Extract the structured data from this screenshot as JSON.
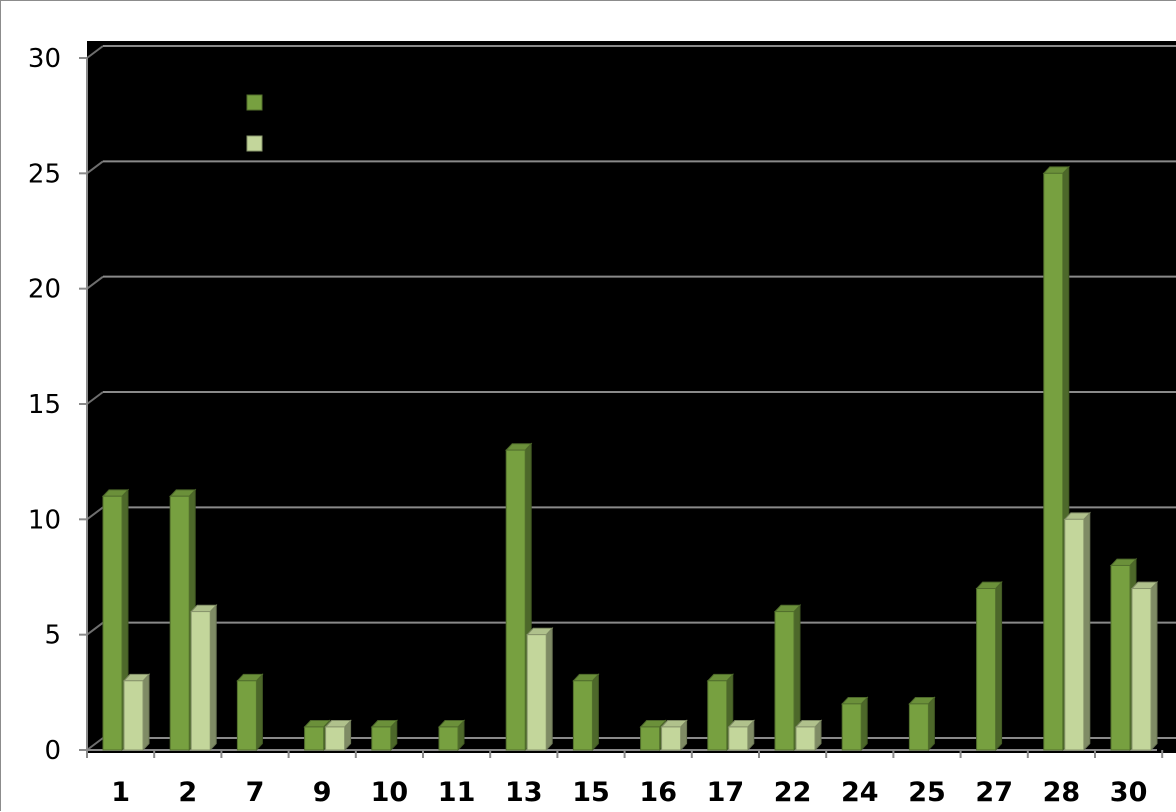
{
  "chart_data": {
    "type": "bar",
    "categories": [
      "1",
      "2",
      "7",
      "9",
      "10",
      "11",
      "13",
      "15",
      "16",
      "17",
      "22",
      "24",
      "25",
      "27",
      "28",
      "30"
    ],
    "series": [
      {
        "values": [
          11,
          11,
          3,
          1,
          1,
          1,
          13,
          3,
          1,
          3,
          6,
          2,
          2,
          7,
          25,
          8
        ],
        "color": "#77a040"
      },
      {
        "values": [
          3,
          6,
          null,
          1,
          null,
          null,
          5,
          null,
          1,
          1,
          1,
          null,
          null,
          null,
          10,
          7
        ],
        "color": "#c3d69b"
      }
    ],
    "yticks": [
      "0",
      "5",
      "10",
      "15",
      "20",
      "25",
      "30"
    ],
    "ylim": [
      0,
      30
    ],
    "grid": true,
    "legend": "top-left",
    "plot_background": "#000000"
  }
}
